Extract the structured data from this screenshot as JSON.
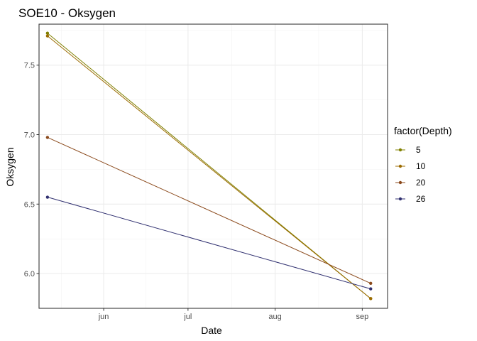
{
  "chart_data": {
    "type": "line",
    "title": "SOE10  -  Oksygen",
    "xlabel": "Date",
    "ylabel": "Oksygen",
    "x_ticks": [
      {
        "date": "2019-06-01",
        "label": "jun"
      },
      {
        "date": "2019-07-01",
        "label": "jul"
      },
      {
        "date": "2019-08-01",
        "label": "aug"
      },
      {
        "date": "2019-09-01",
        "label": "sep"
      }
    ],
    "y_ticks": [
      6.0,
      6.5,
      7.0,
      7.5
    ],
    "y_tick_labels": [
      "6.0",
      "6.5",
      "7.0",
      "7.5"
    ],
    "xlim": [
      "2019-05-09",
      "2019-09-10"
    ],
    "ylim": [
      5.75,
      7.795
    ],
    "grid": true,
    "legend": {
      "title": "factor(Depth)",
      "position": "right"
    },
    "x": [
      "2019-05-12",
      "2019-09-04"
    ],
    "series": [
      {
        "name": "5",
        "color": "#808000",
        "values": [
          7.73,
          5.82
        ]
      },
      {
        "name": "10",
        "color": "#9C6B00",
        "values": [
          7.71,
          5.82
        ]
      },
      {
        "name": "20",
        "color": "#8B4A1C",
        "values": [
          6.98,
          5.93
        ]
      },
      {
        "name": "26",
        "color": "#303070",
        "values": [
          6.55,
          5.89
        ]
      }
    ]
  }
}
